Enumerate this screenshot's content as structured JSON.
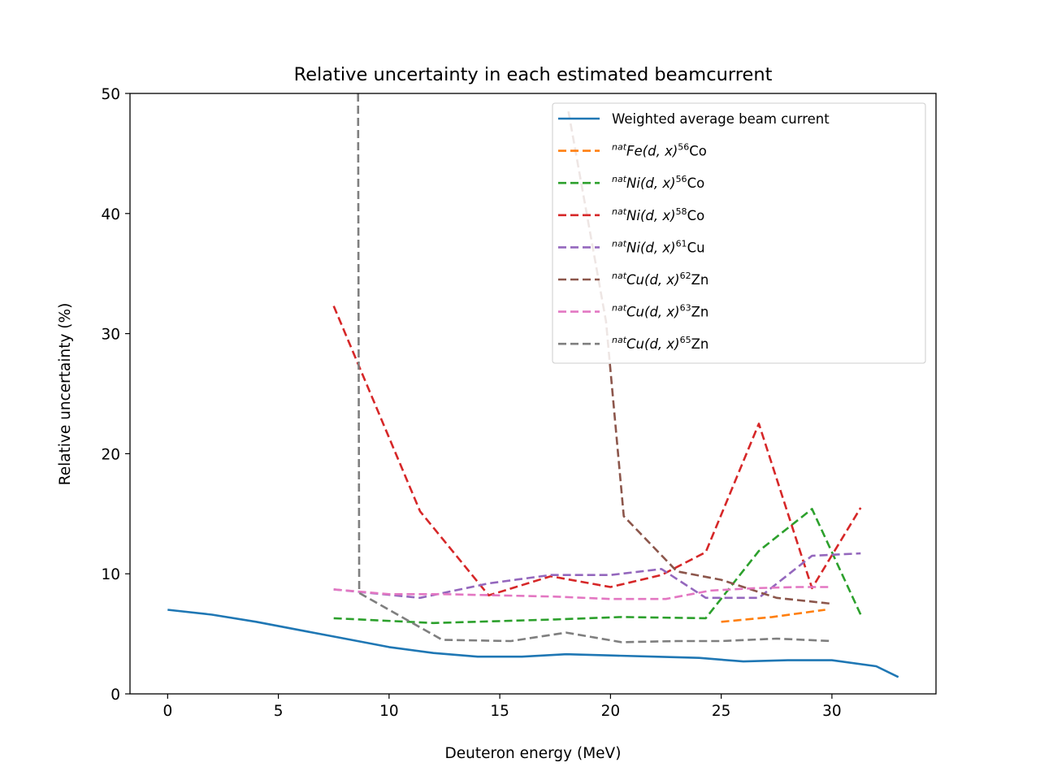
{
  "chart_data": {
    "type": "line",
    "title": "Relative uncertainty in each estimated beamcurrent",
    "xlabel": "Deuteron energy (MeV)",
    "ylabel": "Relative uncertainty (%)",
    "xlim": [
      -1.7,
      34.7
    ],
    "ylim": [
      0,
      50
    ],
    "xticks": [
      0,
      5,
      10,
      15,
      20,
      25,
      30
    ],
    "yticks": [
      0,
      10,
      20,
      30,
      40,
      50
    ],
    "grid": false,
    "legend_position": "top-right",
    "series": [
      {
        "name": "Weighted average beam current",
        "legend_pre": "",
        "legend_reaction": "Weighted average beam current",
        "legend_mass": "",
        "legend_element": "",
        "color": "#1f77b4",
        "dash": "solid",
        "x": [
          0,
          2,
          4,
          6,
          8,
          10,
          12,
          14,
          16,
          18,
          20,
          22,
          24,
          26,
          28,
          30,
          32,
          33
        ],
        "y": [
          7.0,
          6.6,
          6.0,
          5.3,
          4.6,
          3.9,
          3.4,
          3.1,
          3.1,
          3.3,
          3.2,
          3.1,
          3.0,
          2.7,
          2.8,
          2.8,
          2.3,
          1.4
        ]
      },
      {
        "name": "natFe(d,x)56Co",
        "legend_pre": "nat",
        "legend_reaction": "Fe(d, x)",
        "legend_mass": "56",
        "legend_element": "Co",
        "color": "#ff7f0e",
        "dash": "10,5",
        "x": [
          25.0,
          27.3,
          29.7
        ],
        "y": [
          6.0,
          6.4,
          7.0
        ]
      },
      {
        "name": "natNi(d,x)56Co",
        "legend_pre": "nat",
        "legend_reaction": "Ni(d, x)",
        "legend_mass": "56",
        "legend_element": "Co",
        "color": "#2ca02c",
        "dash": "10,5",
        "x": [
          7.5,
          12.0,
          17.5,
          20.5,
          24.3,
          26.7,
          29.1,
          31.3
        ],
        "y": [
          6.3,
          5.9,
          6.2,
          6.4,
          6.3,
          11.9,
          15.4,
          6.6
        ]
      },
      {
        "name": "natNi(d,x)58Co",
        "legend_pre": "nat",
        "legend_reaction": "Ni(d, x)",
        "legend_mass": "58",
        "legend_element": "Co",
        "color": "#d62728",
        "dash": "10,5",
        "x": [
          7.5,
          11.4,
          14.5,
          17.3,
          20.0,
          22.3,
          24.3,
          26.7,
          29.1,
          31.3
        ],
        "y": [
          32.3,
          15.2,
          8.2,
          9.8,
          8.9,
          9.9,
          11.8,
          22.5,
          8.8,
          15.5
        ]
      },
      {
        "name": "natNi(d,x)61Cu",
        "legend_pre": "nat",
        "legend_reaction": "Ni(d, x)",
        "legend_mass": "61",
        "legend_element": "Cu",
        "color": "#9467bd",
        "dash": "10,5",
        "x": [
          7.5,
          11.4,
          14.5,
          17.3,
          20.0,
          22.3,
          24.3,
          26.7,
          29.1,
          31.3
        ],
        "y": [
          8.7,
          8.0,
          9.2,
          9.9,
          9.9,
          10.4,
          8.0,
          8.0,
          11.5,
          11.7
        ]
      },
      {
        "name": "natCu(d,x)62Zn",
        "legend_pre": "nat",
        "legend_reaction": "Cu(d, x)",
        "legend_mass": "62",
        "legend_element": "Zn",
        "color": "#8c564b",
        "dash": "10,5",
        "x": [
          18.1,
          19.8,
          20.6,
          23.0,
          25.0,
          27.5,
          30.0
        ],
        "y": [
          48.5,
          31.0,
          14.8,
          10.2,
          9.5,
          8.0,
          7.5
        ]
      },
      {
        "name": "natCu(d,x)63Zn",
        "legend_pre": "nat",
        "legend_reaction": "Cu(d, x)",
        "legend_mass": "63",
        "legend_element": "Zn",
        "color": "#e377c2",
        "dash": "10,5",
        "x": [
          7.5,
          10.0,
          12.5,
          15.0,
          17.5,
          20.0,
          22.5,
          24.5,
          26.5,
          28.5,
          30.0
        ],
        "y": [
          8.7,
          8.3,
          8.3,
          8.2,
          8.1,
          7.9,
          7.9,
          8.6,
          8.8,
          8.9,
          8.9
        ]
      },
      {
        "name": "natCu(d,x)65Zn",
        "legend_pre": "nat",
        "legend_reaction": "Cu(d, x)",
        "legend_mass": "65",
        "legend_element": "Zn",
        "color": "#7f7f7f",
        "dash": "10,5",
        "x": [
          8.6,
          8.65,
          12.4,
          15.5,
          18.0,
          20.5,
          23.0,
          25.0,
          27.5,
          30.0
        ],
        "y": [
          50.0,
          8.4,
          4.5,
          4.4,
          5.1,
          4.3,
          4.4,
          4.4,
          4.6,
          4.4
        ]
      }
    ]
  }
}
